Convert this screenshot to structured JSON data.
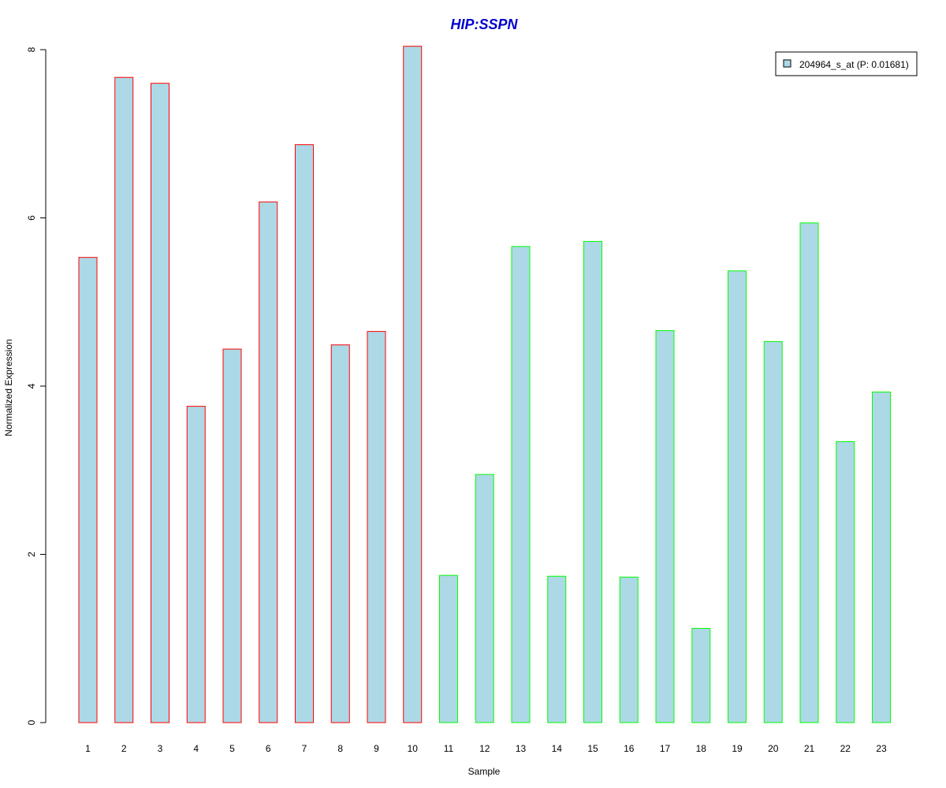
{
  "chart_data": {
    "type": "bar",
    "title": "HIP:SSPN",
    "xlabel": "Sample",
    "ylabel": "Normalized Expression",
    "categories": [
      "1",
      "2",
      "3",
      "4",
      "5",
      "6",
      "7",
      "8",
      "9",
      "10",
      "11",
      "12",
      "13",
      "14",
      "15",
      "16",
      "17",
      "18",
      "19",
      "20",
      "21",
      "22",
      "23"
    ],
    "series": [
      {
        "name": "204964_s_at (P: 0.01681)",
        "values": [
          5.53,
          7.67,
          7.6,
          3.76,
          4.44,
          6.19,
          6.87,
          4.49,
          4.65,
          8.04,
          1.75,
          2.95,
          5.66,
          1.74,
          5.72,
          1.73,
          4.66,
          1.12,
          5.37,
          4.53,
          5.94,
          3.34,
          3.93
        ],
        "groups": [
          "A",
          "A",
          "A",
          "A",
          "A",
          "A",
          "A",
          "A",
          "A",
          "A",
          "B",
          "B",
          "B",
          "B",
          "B",
          "B",
          "B",
          "B",
          "B",
          "B",
          "B",
          "B",
          "B"
        ]
      }
    ],
    "ylim": [
      0,
      8
    ],
    "yticks": [
      0,
      2,
      4,
      6,
      8
    ],
    "grid": false,
    "legend_position": "top-right",
    "colors": {
      "fill": "#add8e6",
      "border_group_A": "#ff0000",
      "border_group_B": "#00ff00",
      "title": "#0000cd",
      "axis": "#000000"
    }
  }
}
